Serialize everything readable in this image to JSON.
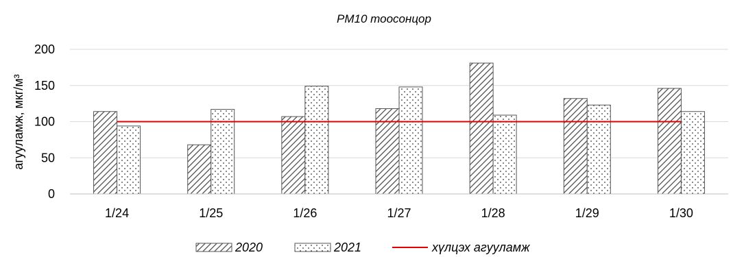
{
  "chart_data": {
    "type": "bar",
    "title": "PM10 тоосонцор",
    "ylabel": "агууламж, мкг/м³",
    "xlabel": "",
    "categories": [
      "1/24",
      "1/25",
      "1/26",
      "1/27",
      "1/28",
      "1/29",
      "1/30"
    ],
    "series": [
      {
        "name": "2020",
        "pattern": "diagonal-hatch",
        "values": [
          114,
          68,
          107,
          118,
          181,
          132,
          146
        ]
      },
      {
        "name": "2021",
        "pattern": "dots",
        "values": [
          94,
          117,
          149,
          148,
          109,
          123,
          114
        ]
      }
    ],
    "reference_line": {
      "name": "хүлцэх агууламж",
      "value": 100,
      "color": "#e00000"
    },
    "ylim": [
      0,
      200
    ],
    "yticks": [
      "0",
      "50",
      "100",
      "150",
      "200"
    ],
    "grid": true,
    "legend_position": "bottom"
  }
}
